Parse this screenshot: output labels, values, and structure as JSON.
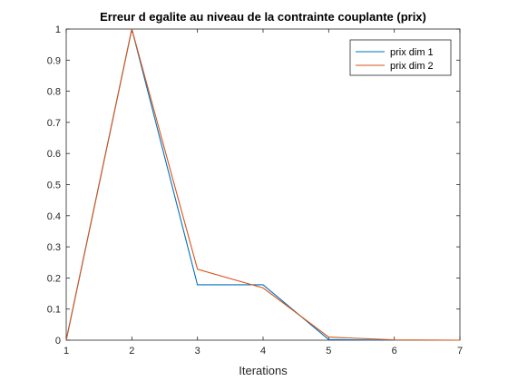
{
  "chart_data": {
    "type": "line",
    "title": "Erreur d egalite au niveau de la contrainte couplante (prix)",
    "xlabel": "Iterations",
    "ylabel": "",
    "xlim": [
      1,
      7
    ],
    "ylim": [
      0,
      1
    ],
    "xticks": [
      "1",
      "2",
      "3",
      "4",
      "5",
      "6",
      "7"
    ],
    "yticks": [
      "0",
      "0.1",
      "0.2",
      "0.3",
      "0.4",
      "0.5",
      "0.6",
      "0.7",
      "0.8",
      "0.9",
      "1"
    ],
    "grid": false,
    "legend_position": "top-right",
    "x": [
      1,
      2,
      3,
      4,
      5,
      6,
      7
    ],
    "series": [
      {
        "name": "prix dim 1",
        "color": "#0072BD",
        "values": [
          0,
          1,
          0.178,
          0.178,
          0.002,
          0,
          0
        ]
      },
      {
        "name": "prix dim 2",
        "color": "#D95319",
        "values": [
          0,
          1,
          0.228,
          0.168,
          0.01,
          0.001,
          0
        ]
      }
    ]
  }
}
